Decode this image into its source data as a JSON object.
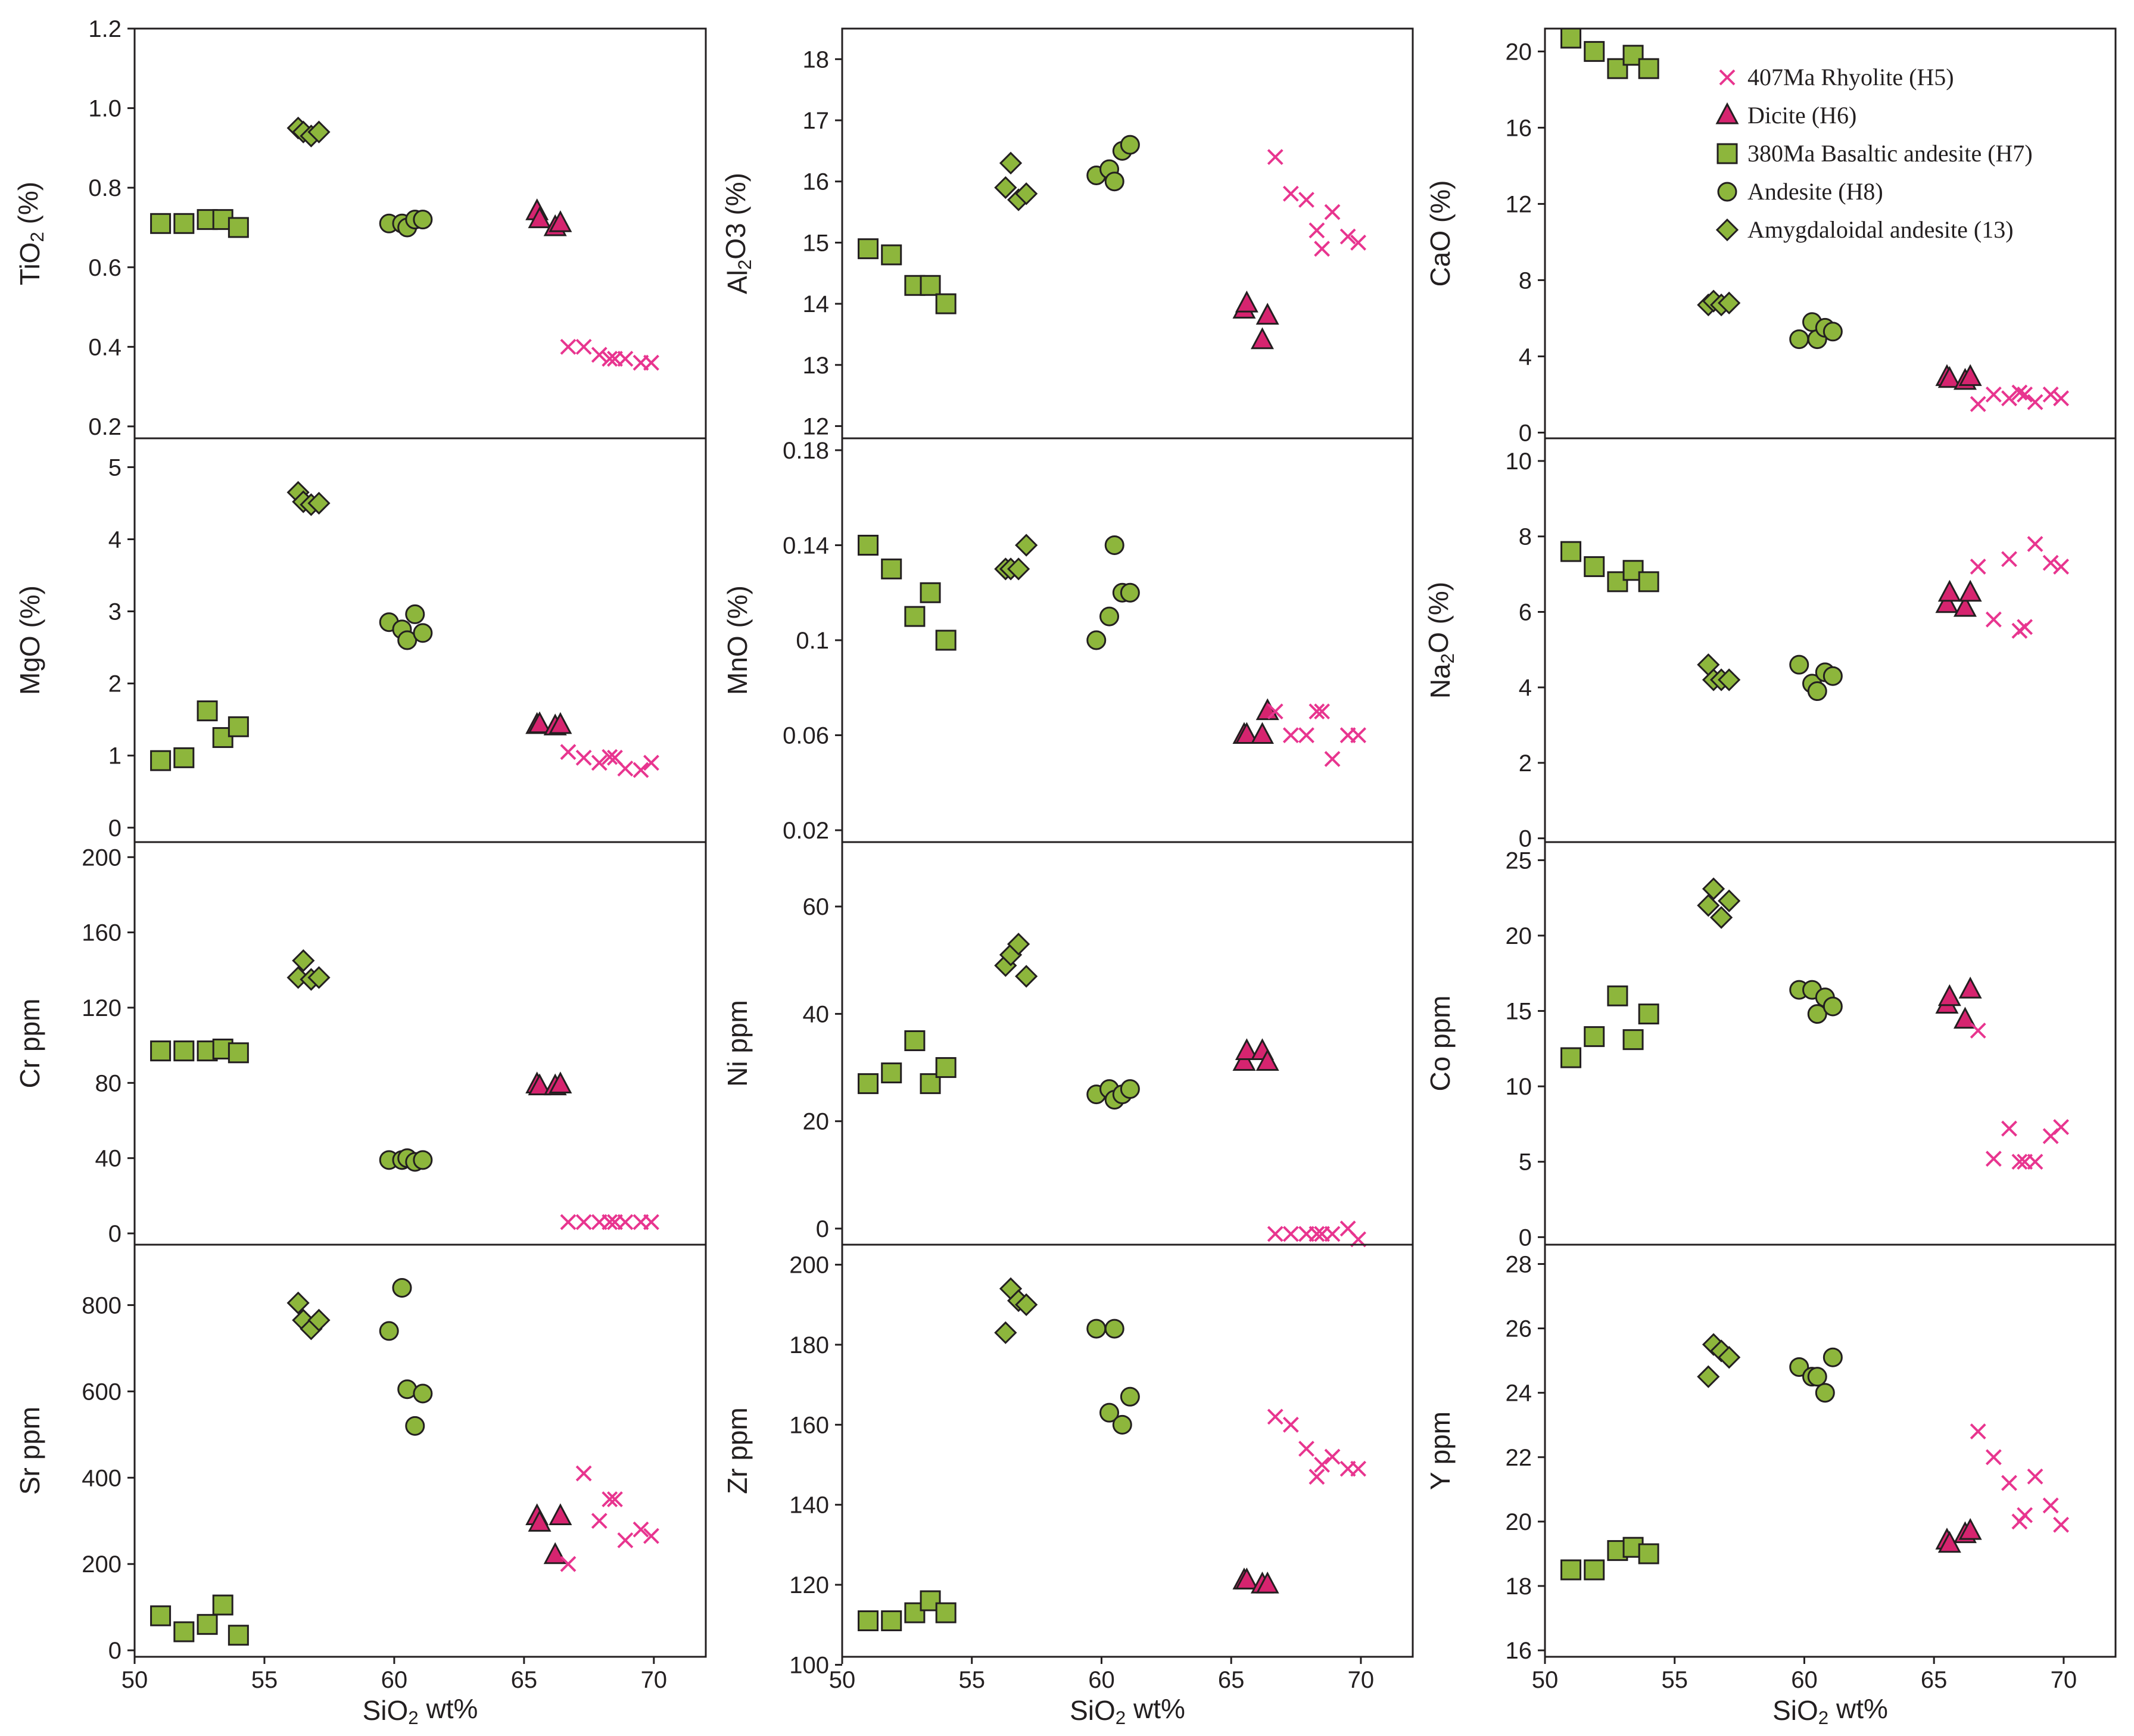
{
  "figure": {
    "xlabel": "SiO2 wt%",
    "legend": {
      "placement": "top-right of CaO panel",
      "entries": [
        {
          "key": "rhy",
          "label": "407Ma Rhyolite (H5)"
        },
        {
          "key": "dac",
          "label": "Dicite (H6)"
        },
        {
          "key": "bas",
          "label": "380Ma Basaltic andesite (H7)"
        },
        {
          "key": "and",
          "label": "Andesite (H8)"
        },
        {
          "key": "amy",
          "label": "Amygdaloidal andesite (13)"
        }
      ]
    }
  },
  "groups": {
    "bas": {
      "name": "380Ma Basaltic andesite (H7)",
      "marker": "square",
      "color": "#8db63c",
      "x": [
        51.0,
        51.9,
        52.8,
        53.4,
        54.0
      ]
    },
    "amy": {
      "name": "Amygdaloidal andesite (13)",
      "marker": "diamond",
      "color": "#8db63c",
      "x": [
        56.3,
        56.5,
        56.8,
        57.1
      ]
    },
    "and": {
      "name": "Andesite (H8)",
      "marker": "circle",
      "color": "#8db63c",
      "x": [
        59.8,
        60.3,
        60.5,
        60.8,
        61.1
      ]
    },
    "dac": {
      "name": "Dicite (H6)",
      "marker": "triangle",
      "color": "#d6246f",
      "x": [
        65.5,
        65.6,
        66.2,
        66.4
      ]
    },
    "rhy": {
      "name": "407Ma Rhyolite (H5)",
      "marker": "cross",
      "color": "#e8358f",
      "x": [
        66.7,
        67.3,
        67.9,
        68.3,
        68.5,
        68.9,
        69.5,
        69.9
      ]
    }
  },
  "chart_data": [
    {
      "id": "tio2",
      "type": "scatter",
      "ylabel": "TiO2 (%)",
      "xlim": [
        50,
        72
      ],
      "ylim": [
        0.17,
        1.2
      ],
      "xticks": [],
      "yticks": [
        0.2,
        0.4,
        0.6,
        0.8,
        1.0,
        1.2
      ],
      "ytick_labels": [
        "0.2",
        "0.4",
        "0.6",
        "0.8",
        "1.0",
        "1.2"
      ],
      "series": {
        "bas": [
          0.71,
          0.71,
          0.72,
          0.72,
          0.7
        ],
        "amy": [
          0.95,
          0.94,
          0.93,
          0.94
        ],
        "and": [
          0.71,
          0.71,
          0.7,
          0.72,
          0.72
        ],
        "dac": [
          0.74,
          0.72,
          0.7,
          0.71
        ],
        "rhy": [
          0.4,
          0.4,
          0.38,
          0.37,
          0.37,
          0.37,
          0.36,
          0.36
        ]
      }
    },
    {
      "id": "al2o3",
      "type": "scatter",
      "ylabel": "Al2O3 (%)",
      "xlim": [
        50,
        72
      ],
      "ylim": [
        11.8,
        18.5
      ],
      "xticks": [],
      "yticks": [
        12,
        13,
        14,
        15,
        16,
        17,
        18
      ],
      "ytick_labels": [
        "12",
        "13",
        "14",
        "15",
        "16",
        "17",
        "18"
      ],
      "series": {
        "bas": [
          14.9,
          14.8,
          14.3,
          14.3,
          14.0
        ],
        "amy": [
          15.9,
          16.3,
          15.7,
          15.8
        ],
        "and": [
          16.1,
          16.2,
          16.0,
          16.5,
          16.6
        ],
        "dac": [
          13.9,
          14.0,
          13.4,
          13.8
        ],
        "rhy": [
          16.4,
          15.8,
          15.7,
          15.2,
          14.9,
          15.5,
          15.1,
          15.0
        ]
      }
    },
    {
      "id": "cao",
      "type": "scatter",
      "ylabel": "CaO (%)",
      "xlim": [
        50,
        72
      ],
      "ylim": [
        -0.3,
        21.2
      ],
      "xticks": [],
      "yticks": [
        0,
        4,
        8,
        12,
        16,
        20
      ],
      "ytick_labels": [
        "0",
        "4",
        "8",
        "12",
        "16",
        "20"
      ],
      "series": {
        "bas": [
          20.7,
          20.0,
          19.1,
          19.8,
          19.1
        ],
        "amy": [
          6.7,
          6.9,
          6.7,
          6.8
        ],
        "and": [
          4.9,
          5.8,
          4.9,
          5.5,
          5.3
        ],
        "dac": [
          2.9,
          2.8,
          2.7,
          2.9
        ],
        "rhy": [
          1.5,
          2.0,
          1.8,
          2.1,
          2.0,
          1.6,
          2.0,
          1.8
        ]
      }
    },
    {
      "id": "mgo",
      "type": "scatter",
      "ylabel": "MgO (%)",
      "xlim": [
        50,
        72
      ],
      "ylim": [
        -0.2,
        5.4
      ],
      "xticks": [],
      "yticks": [
        0,
        1,
        2,
        3,
        4,
        5
      ],
      "ytick_labels": [
        "0",
        "1",
        "2",
        "3",
        "4",
        "5"
      ],
      "series": {
        "bas": [
          0.93,
          0.97,
          1.62,
          1.25,
          1.4
        ],
        "amy": [
          4.65,
          4.52,
          4.48,
          4.5
        ],
        "and": [
          2.85,
          2.75,
          2.6,
          2.96,
          2.7
        ],
        "dac": [
          1.42,
          1.43,
          1.4,
          1.42
        ],
        "rhy": [
          1.05,
          0.97,
          0.9,
          0.98,
          0.97,
          0.82,
          0.8,
          0.9
        ]
      }
    },
    {
      "id": "mno",
      "type": "scatter",
      "ylabel": "MnO (%)",
      "xlim": [
        50,
        72
      ],
      "ylim": [
        0.015,
        0.185
      ],
      "xticks": [],
      "yticks": [
        0.02,
        0.06,
        0.1,
        0.14,
        0.18
      ],
      "ytick_labels": [
        "0.02",
        "0.06",
        "0.1",
        "0.14",
        "0.18"
      ],
      "series": {
        "bas": [
          0.14,
          0.13,
          0.11,
          0.12,
          0.1
        ],
        "amy": [
          0.13,
          0.13,
          0.13,
          0.14
        ],
        "and": [
          0.1,
          0.11,
          0.14,
          0.12,
          0.12
        ],
        "dac": [
          0.06,
          0.06,
          0.06,
          0.07
        ],
        "rhy": [
          0.07,
          0.06,
          0.06,
          0.07,
          0.07,
          0.05,
          0.06,
          0.06
        ]
      }
    },
    {
      "id": "na2o",
      "type": "scatter",
      "ylabel": "Na2O (%)",
      "xlim": [
        50,
        72
      ],
      "ylim": [
        -0.1,
        10.6
      ],
      "xticks": [],
      "yticks": [
        0,
        2,
        4,
        6,
        8,
        10
      ],
      "ytick_labels": [
        "0",
        "2",
        "4",
        "6",
        "8",
        "10"
      ],
      "series": {
        "bas": [
          7.6,
          7.2,
          6.8,
          7.1,
          6.8
        ],
        "amy": [
          4.6,
          4.2,
          4.2,
          4.2
        ],
        "and": [
          4.6,
          4.1,
          3.9,
          4.4,
          4.3
        ],
        "dac": [
          6.2,
          6.5,
          6.1,
          6.5
        ],
        "rhy": [
          7.2,
          5.8,
          7.4,
          5.5,
          5.6,
          7.8,
          7.3,
          7.2
        ]
      }
    },
    {
      "id": "cr",
      "type": "scatter",
      "ylabel": "Cr ppm",
      "xlim": [
        50,
        72
      ],
      "ylim": [
        -6,
        208
      ],
      "xticks": [],
      "yticks": [
        0,
        40,
        80,
        120,
        160,
        200
      ],
      "ytick_labels": [
        "0",
        "40",
        "80",
        "120",
        "160",
        "200"
      ],
      "series": {
        "bas": [
          97,
          97,
          97,
          98,
          96
        ],
        "amy": [
          136,
          145,
          135,
          136
        ],
        "and": [
          39,
          39,
          40,
          38,
          39
        ],
        "dac": [
          79,
          78,
          78,
          79
        ],
        "rhy": [
          6,
          6,
          6,
          6,
          6,
          6,
          6,
          6
        ]
      }
    },
    {
      "id": "ni",
      "type": "scatter",
      "ylabel": "Ni ppm",
      "xlim": [
        50,
        72
      ],
      "ylim": [
        -3,
        72
      ],
      "xticks": [],
      "yticks": [
        0,
        20,
        40,
        60
      ],
      "ytick_labels": [
        "0",
        "20",
        "40",
        "60"
      ],
      "series": {
        "bas": [
          27,
          29,
          35,
          27,
          30
        ],
        "amy": [
          49,
          51,
          53,
          47
        ],
        "and": [
          25,
          26,
          24,
          25,
          26
        ],
        "dac": [
          31,
          33,
          33,
          31
        ],
        "rhy": [
          -1,
          -1,
          -1,
          -1,
          -1,
          -1,
          0,
          -2
        ]
      }
    },
    {
      "id": "co",
      "type": "scatter",
      "ylabel": "Co ppm",
      "xlim": [
        50,
        72
      ],
      "ylim": [
        -0.5,
        26.2
      ],
      "xticks": [],
      "yticks": [
        0,
        5,
        10,
        15,
        20,
        25
      ],
      "ytick_labels": [
        "0",
        "5",
        "10",
        "15",
        "20",
        "25"
      ],
      "series": {
        "bas": [
          11.9,
          13.3,
          16.0,
          13.1,
          14.8
        ],
        "amy": [
          22.0,
          23.1,
          21.2,
          22.3
        ],
        "and": [
          16.4,
          16.4,
          14.8,
          15.9,
          15.3
        ],
        "dac": [
          15.4,
          15.9,
          14.4,
          16.4
        ],
        "rhy": [
          13.7,
          5.2,
          7.2,
          5.0,
          5.0,
          5.0,
          6.7,
          7.3
        ]
      }
    },
    {
      "id": "sr",
      "type": "scatter",
      "ylabel": "Sr ppm",
      "xlim": [
        50,
        72
      ],
      "ylim": [
        -15,
        940
      ],
      "xticks": [
        50,
        55,
        60,
        65,
        70
      ],
      "xtick_labels": [
        "50",
        "55",
        "60",
        "65",
        "70"
      ],
      "yticks": [
        0,
        200,
        400,
        600,
        800
      ],
      "ytick_labels": [
        "0",
        "200",
        "400",
        "600",
        "800"
      ],
      "series": {
        "bas": [
          80,
          43,
          60,
          105,
          35
        ],
        "amy": [
          805,
          765,
          745,
          765
        ],
        "and": [
          740,
          840,
          605,
          520,
          595
        ],
        "dac": [
          310,
          295,
          220,
          310
        ],
        "rhy": [
          200,
          410,
          300,
          350,
          350,
          255,
          280,
          265
        ]
      }
    },
    {
      "id": "zr",
      "type": "scatter",
      "ylabel": "Zr ppm",
      "xlim": [
        50,
        72
      ],
      "ylim": [
        102,
        205
      ],
      "xticks": [
        50,
        55,
        60,
        65,
        70
      ],
      "xtick_labels": [
        "50",
        "55",
        "60",
        "65",
        "70"
      ],
      "yticks": [
        100,
        120,
        140,
        160,
        180,
        200
      ],
      "ytick_labels": [
        "100",
        "120",
        "140",
        "160",
        "180",
        "200"
      ],
      "series": {
        "bas": [
          111,
          111,
          113,
          116,
          113
        ],
        "amy": [
          183,
          194,
          191,
          190
        ],
        "and": [
          184,
          163,
          184,
          160,
          167
        ],
        "dac": [
          121,
          121,
          120,
          120
        ],
        "rhy": [
          162,
          160,
          154,
          147,
          150,
          152,
          149,
          149
        ]
      }
    },
    {
      "id": "y",
      "type": "scatter",
      "ylabel": "Y ppm",
      "xlim": [
        50,
        72
      ],
      "ylim": [
        15.8,
        28.6
      ],
      "xticks": [
        50,
        55,
        60,
        65,
        70
      ],
      "xtick_labels": [
        "50",
        "55",
        "60",
        "65",
        "70"
      ],
      "yticks": [
        16,
        18,
        20,
        22,
        24,
        26,
        28
      ],
      "ytick_labels": [
        "16",
        "18",
        "20",
        "22",
        "24",
        "26",
        "28"
      ],
      "series": {
        "bas": [
          18.5,
          18.5,
          19.1,
          19.2,
          19.0
        ],
        "amy": [
          24.5,
          25.5,
          25.3,
          25.1
        ],
        "and": [
          24.8,
          24.5,
          24.5,
          24.0,
          25.1
        ],
        "dac": [
          19.4,
          19.3,
          19.6,
          19.7
        ],
        "rhy": [
          22.8,
          22.0,
          21.2,
          20.0,
          20.2,
          21.4,
          20.5,
          19.9
        ]
      }
    }
  ]
}
